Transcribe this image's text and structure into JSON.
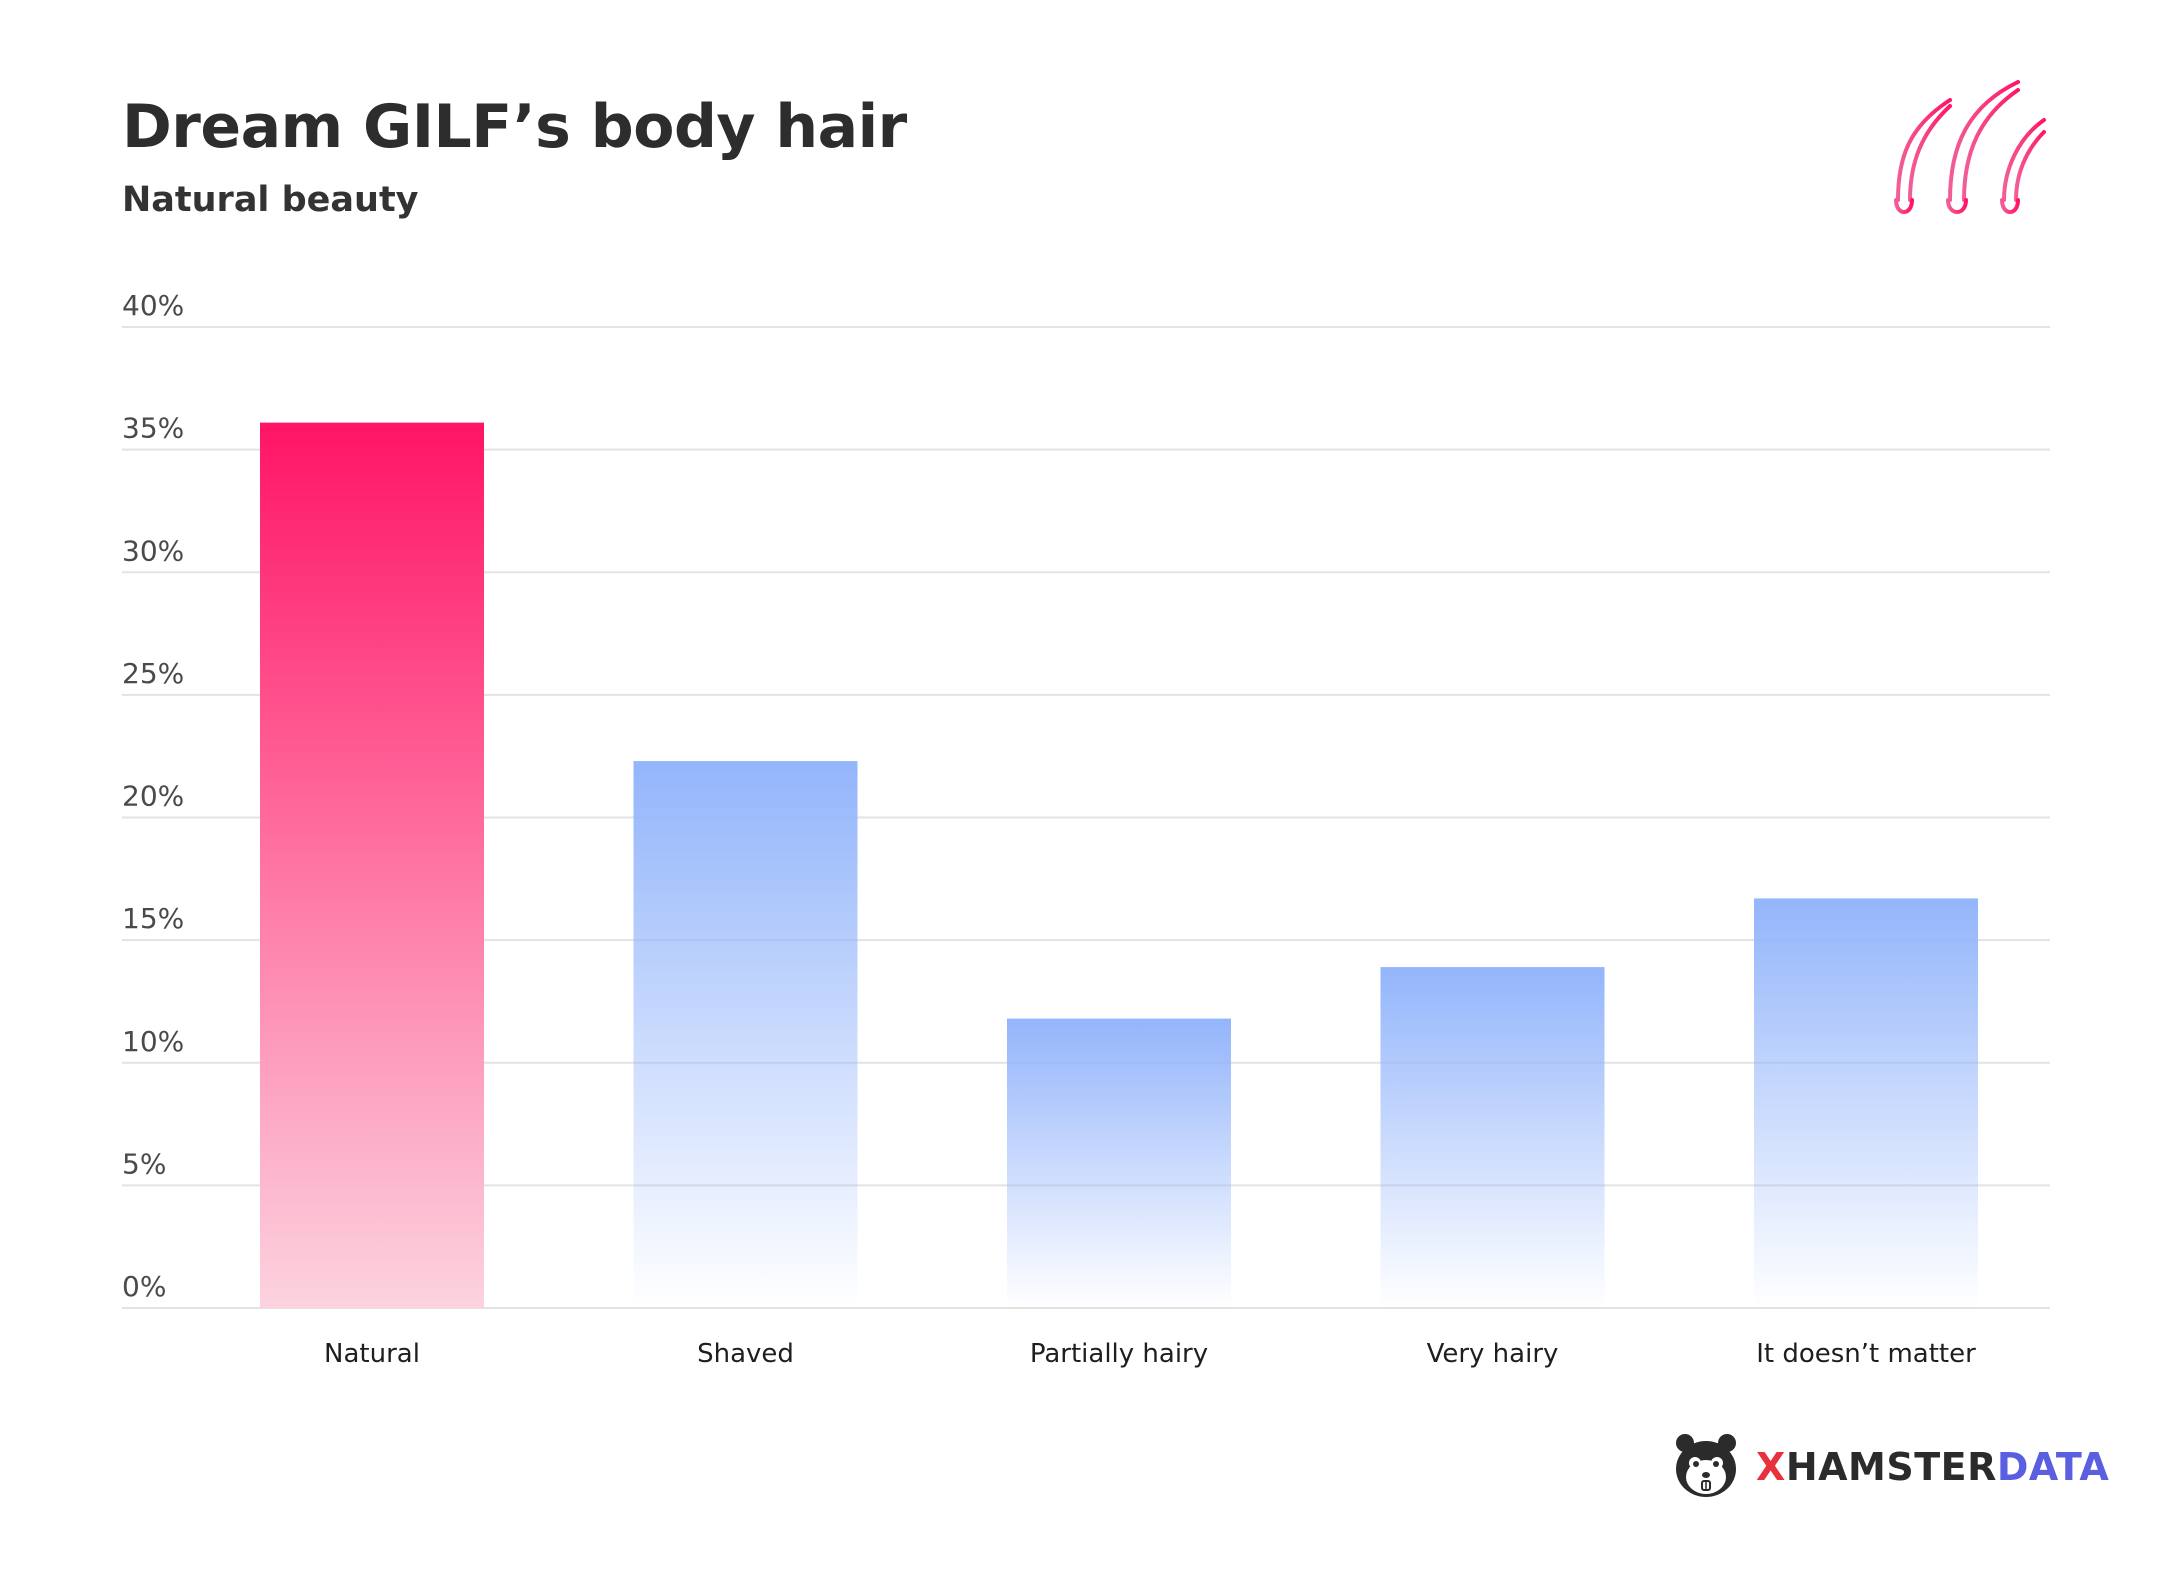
{
  "title": "Dream GILF’s body hair",
  "subtitle": "Natural beauty",
  "colors": {
    "highlight": "#ff1466",
    "highlight_light": "#fcd3df",
    "bar": "#93b5fb",
    "grid": "#e3e3e3",
    "brand_x": "#e8313d",
    "brand_data": "#5a5ee0"
  },
  "icons": {
    "decoration": "hair-follicles-icon",
    "brand": "hamster-logo-icon"
  },
  "brand": {
    "x": "X",
    "hamster": "HAMSTER",
    "data": "DATA"
  },
  "chart_data": {
    "type": "bar",
    "title": "Dream GILF’s body hair",
    "subtitle": "Natural beauty",
    "categories": [
      "Natural",
      "Shaved",
      "Partially hairy",
      "Very hairy",
      "It doesn’t matter"
    ],
    "values": [
      36.1,
      22.3,
      11.8,
      13.9,
      16.7
    ],
    "value_unit": "%",
    "highlighted_category": "Natural",
    "ylim": [
      0,
      40
    ],
    "yticks": [
      0,
      5,
      10,
      15,
      20,
      25,
      30,
      35,
      40
    ],
    "ytick_labels": [
      "0%",
      "5%",
      "10%",
      "15%",
      "20%",
      "25%",
      "30%",
      "35%",
      "40%"
    ],
    "grid": true,
    "legend": "none"
  }
}
